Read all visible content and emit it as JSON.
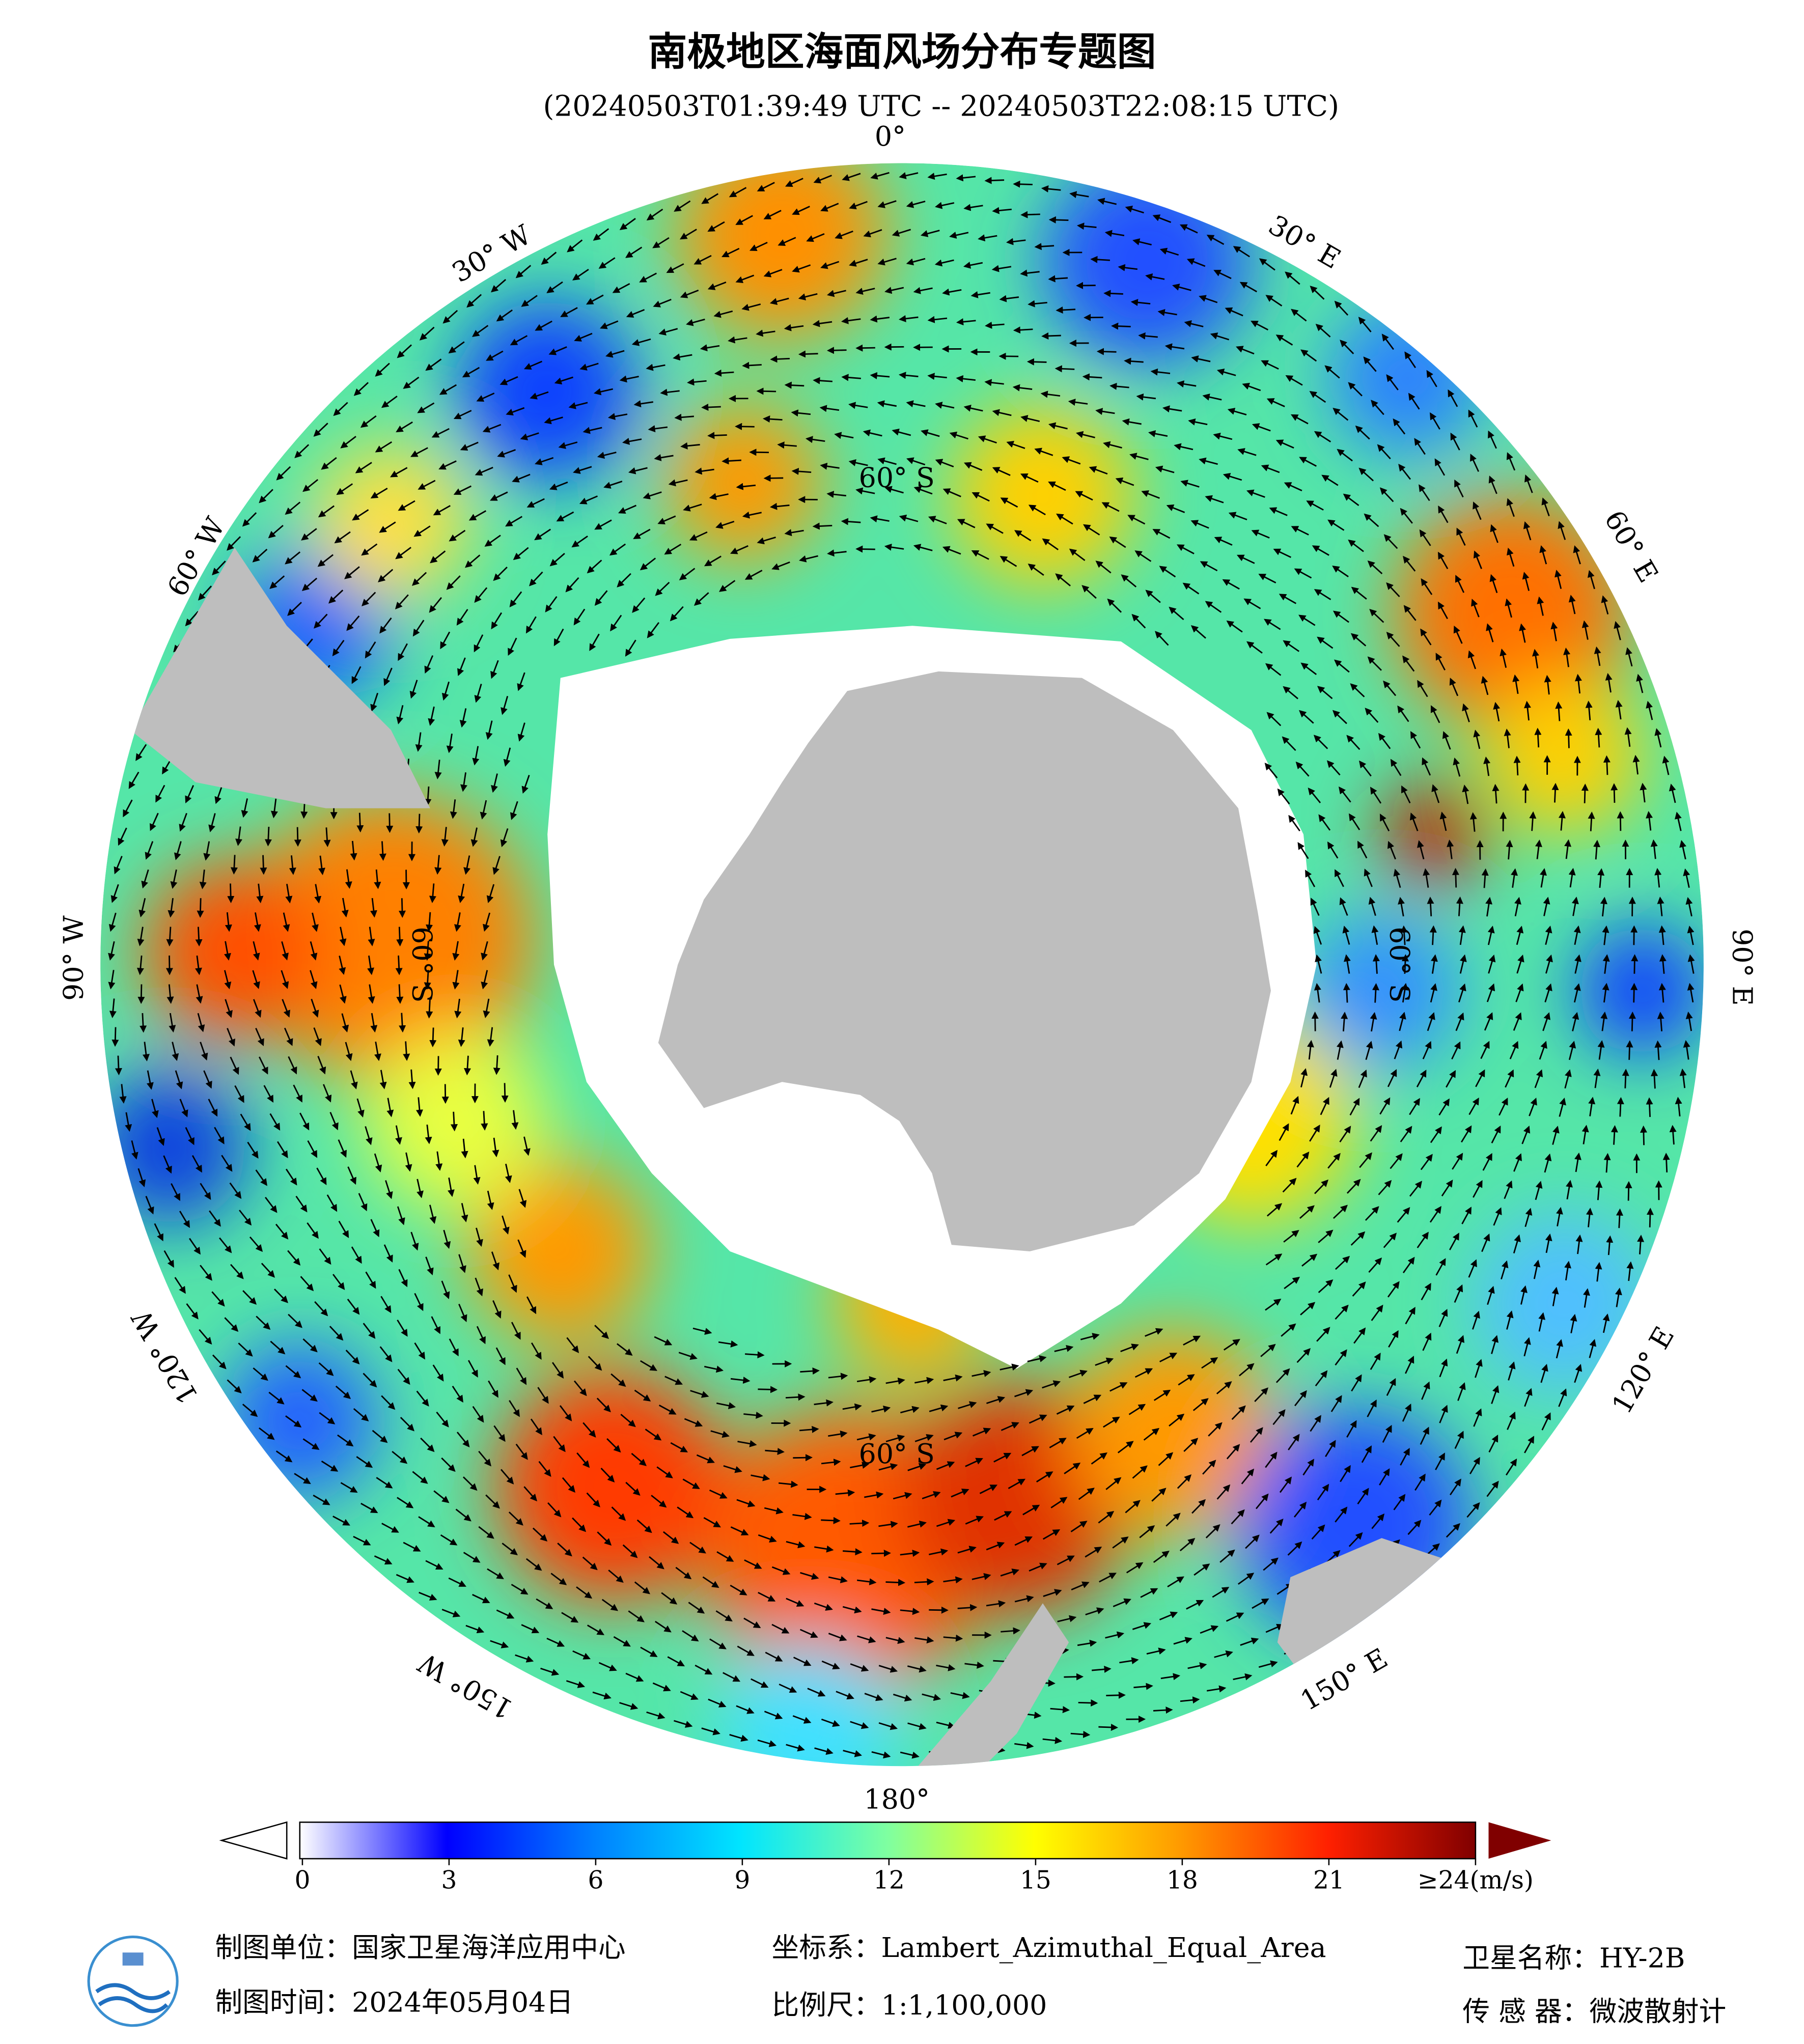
{
  "header": {
    "title": "南极地区海面风场分布专题图",
    "subtitle": "(20240503T01:39:49 UTC -- 20240503T22:08:15 UTC)"
  },
  "map": {
    "projection_labels": {
      "lon": [
        "0°",
        "30° E",
        "60° E",
        "90° E",
        "120° E",
        "150° E",
        "180°",
        "150° W",
        "120° W",
        "90° W",
        "60° W",
        "30° W"
      ],
      "lat": [
        "60° S",
        "60° S",
        "60° S",
        "60° S"
      ]
    }
  },
  "colorbar": {
    "range": [
      0,
      24
    ],
    "ticks": [
      0,
      3,
      6,
      9,
      12,
      15,
      18,
      21,
      {
        "value": 24,
        "label": "≥24(m/s)"
      }
    ],
    "colors": [
      "#ffffff",
      "#0000ff",
      "#0080ff",
      "#00e5ff",
      "#7fffa0",
      "#ffff00",
      "#ff9900",
      "#ff2000",
      "#800000"
    ]
  },
  "footer": {
    "unit": "制图单位：国家卫星海洋应用中心",
    "date": "制图时间：2024年05月04日",
    "crs": "坐标系：Lambert_Azimuthal_Equal_Area",
    "scale": "比例尺：1:1,100,000",
    "satellite": "卫星名称：HY-2B",
    "sensor": "传 感 器：微波散射计"
  }
}
